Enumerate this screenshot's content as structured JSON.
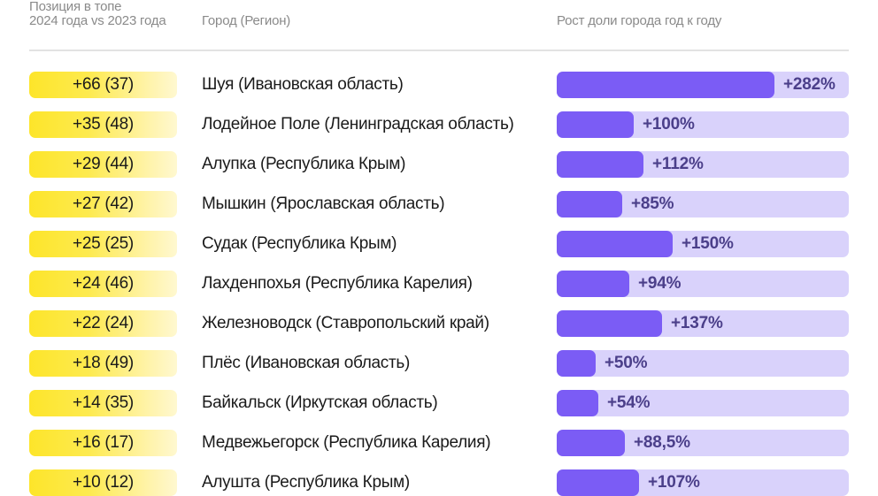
{
  "header": {
    "position_label_line1": "Позиция в топе",
    "position_label_line2": "2024 года vs 2023 года",
    "city_label": "Город (Регион)",
    "growth_label": "Рост доли города год к году"
  },
  "colors": {
    "pill_yellow": "#fde52a",
    "bar_fill": "#7b5cf5",
    "bar_track": "#d9d2fb",
    "pct_text": "#4b3f8a",
    "header_text": "#8a8a8a"
  },
  "rows": [
    {
      "position": "+66 (37)",
      "city": "Шуя (Ивановская область)",
      "growth": "+282%",
      "growth_value": 282
    },
    {
      "position": "+35 (48)",
      "city": "Лодейное Поле (Ленинградская область)",
      "growth": "+100%",
      "growth_value": 100
    },
    {
      "position": "+29 (44)",
      "city": "Алупка (Республика Крым)",
      "growth": "+112%",
      "growth_value": 112
    },
    {
      "position": "+27 (42)",
      "city": "Мышкин (Ярославская область)",
      "growth": "+85%",
      "growth_value": 85
    },
    {
      "position": "+25 (25)",
      "city": "Судак (Республика Крым)",
      "growth": "+150%",
      "growth_value": 150
    },
    {
      "position": "+24 (46)",
      "city": "Лахденпохья (Республика Карелия)",
      "growth": "+94%",
      "growth_value": 94
    },
    {
      "position": "+22 (24)",
      "city": "Железноводск (Ставропольский край)",
      "growth": "+137%",
      "growth_value": 137
    },
    {
      "position": "+18 (49)",
      "city": "Плёс (Ивановская область)",
      "growth": "+50%",
      "growth_value": 50
    },
    {
      "position": "+14 (35)",
      "city": "Байкальск (Иркутская область)",
      "growth": "+54%",
      "growth_value": 54
    },
    {
      "position": "+16 (17)",
      "city": "Медвежьегорск (Республика Карелия)",
      "growth": "+88,5%",
      "growth_value": 88.5
    },
    {
      "position": "+10 (12)",
      "city": "Алушта (Республика Крым)",
      "growth": "+107%",
      "growth_value": 107
    }
  ],
  "chart_data": {
    "type": "bar",
    "orientation": "horizontal",
    "title": "",
    "xlabel": "Рост доли города год к году",
    "ylabel": "Город (Регион)",
    "categories": [
      "Шуя (Ивановская область)",
      "Лодейное Поле (Ленинградская область)",
      "Алупка (Республика Крым)",
      "Мышкин (Ярославская область)",
      "Судак (Республика Крым)",
      "Лахденпохья (Республика Карелия)",
      "Железноводск (Ставропольский край)",
      "Плёс (Ивановская область)",
      "Байкальск (Иркутская область)",
      "Медвежьегорск (Республика Карелия)",
      "Алушта (Республика Крым)"
    ],
    "series": [
      {
        "name": "Рост доли города год к году, %",
        "values": [
          282,
          100,
          112,
          85,
          150,
          94,
          137,
          50,
          54,
          88.5,
          107
        ]
      }
    ],
    "position_change": [
      "+66 (37)",
      "+35 (48)",
      "+29 (44)",
      "+27 (42)",
      "+25 (25)",
      "+24 (46)",
      "+22 (24)",
      "+18 (49)",
      "+14 (35)",
      "+16 (17)",
      "+10 (12)"
    ],
    "data_labels": [
      "+282%",
      "+100%",
      "+112%",
      "+85%",
      "+150%",
      "+94%",
      "+137%",
      "+50%",
      "+54%",
      "+88,5%",
      "+107%"
    ],
    "xlim": [
      0,
      380
    ],
    "grid": false,
    "legend": "none"
  }
}
